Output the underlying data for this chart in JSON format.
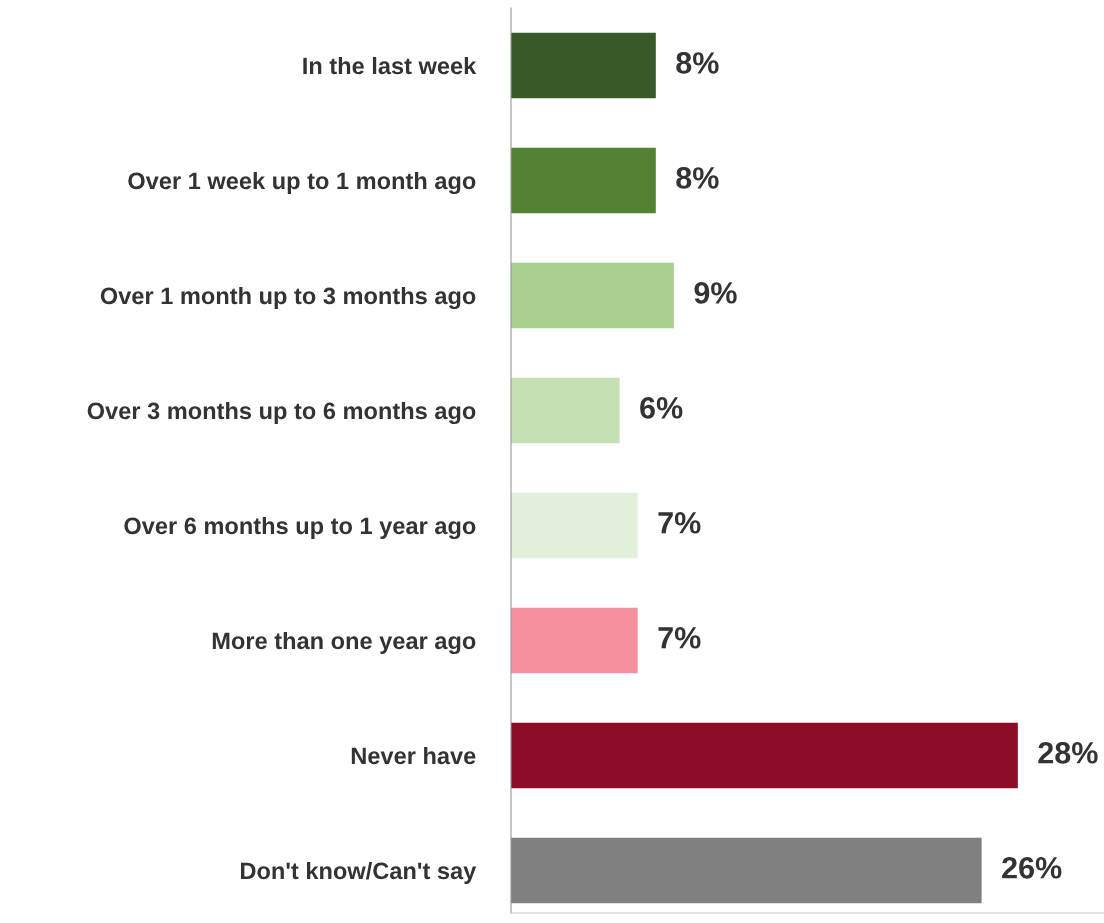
{
  "chart_data": {
    "type": "bar",
    "orientation": "horizontal",
    "categories": [
      "In the last week",
      "Over 1 week up to 1 month ago",
      "Over 1 month up to 3 months ago",
      "Over 3 months up to 6 months ago",
      "Over 6 months up to 1 year ago",
      "More than one year ago",
      "Never have",
      "Don't know/Can't say"
    ],
    "values": [
      8,
      8,
      9,
      6,
      7,
      7,
      28,
      26
    ],
    "value_labels": [
      "8%",
      "8%",
      "9%",
      "6%",
      "7%",
      "7%",
      "28%",
      "26%"
    ],
    "colors": [
      "#375a28",
      "#548235",
      "#a9d08e",
      "#c6e0b4",
      "#e2efda",
      "#f4909f",
      "#8b0d27",
      "#808080"
    ],
    "grid": false,
    "legend": false,
    "tick_labels": "y"
  }
}
